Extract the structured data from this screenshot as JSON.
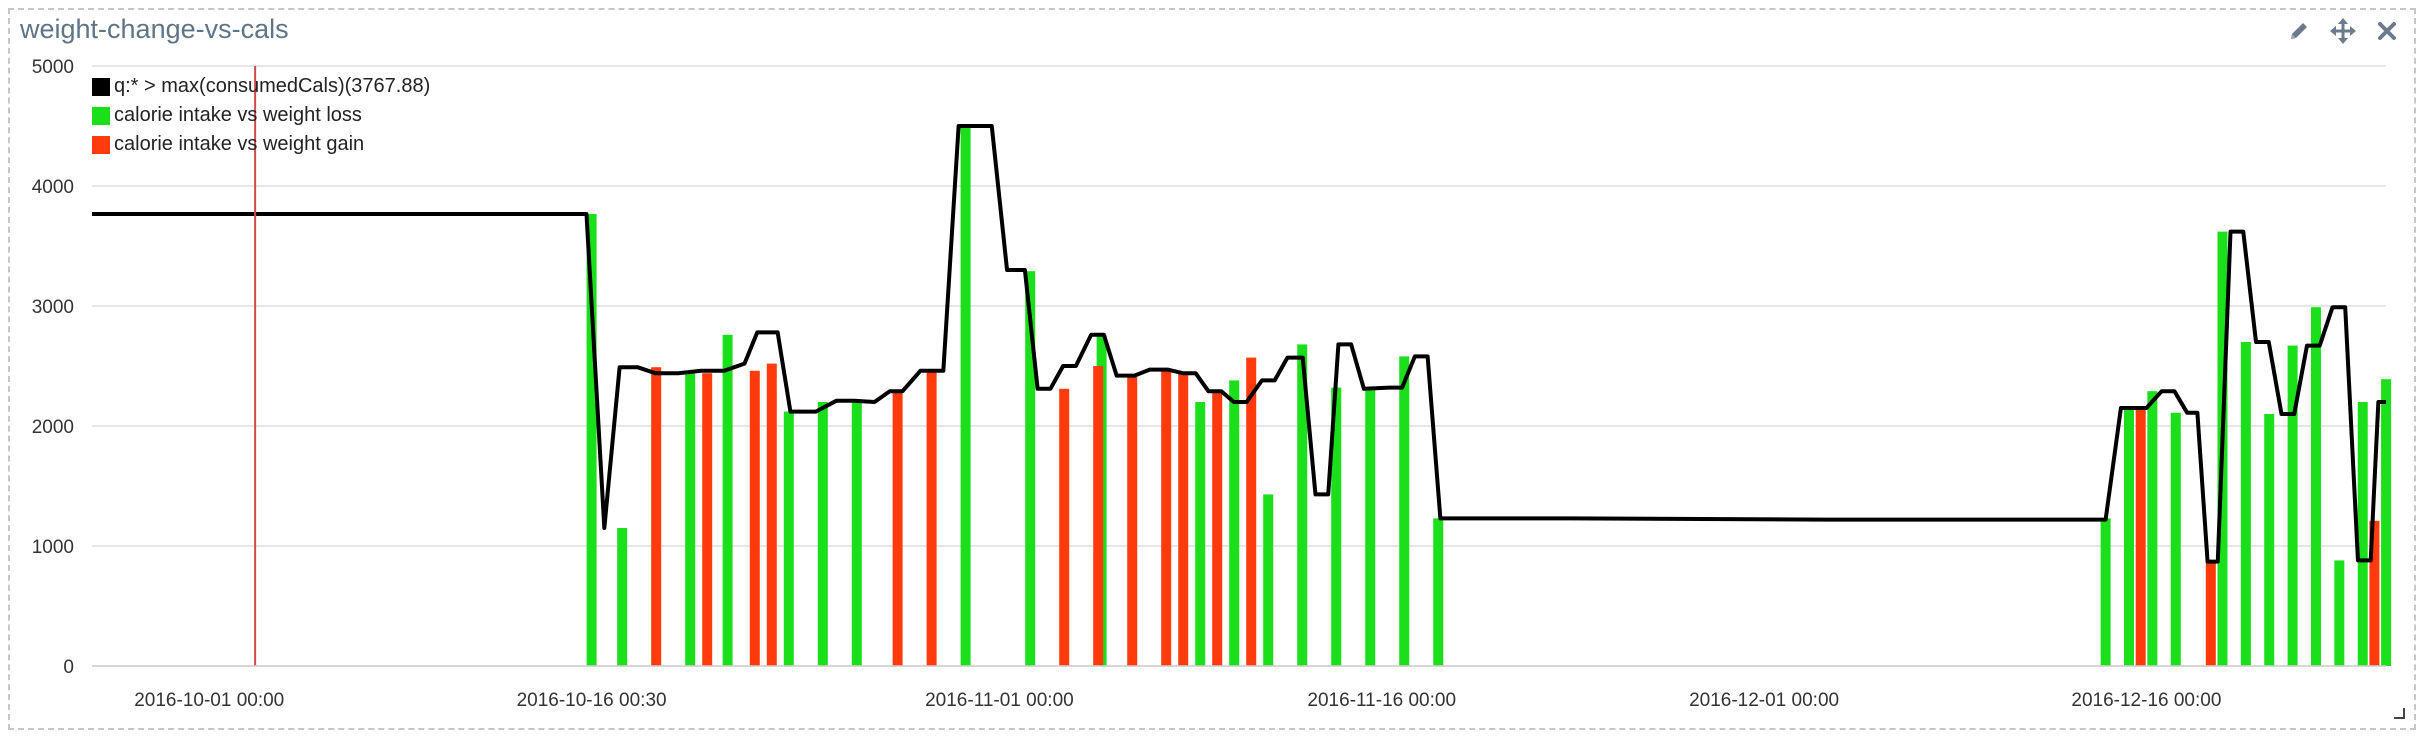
{
  "panel": {
    "title": "weight-change-vs-cals",
    "tools": {
      "edit_icon": "pencil-icon",
      "move_icon": "move-icon",
      "close_icon": "close-icon"
    }
  },
  "colors": {
    "line": "#000000",
    "loss": "#1adf1a",
    "gain": "#ff3a0d",
    "marker": "#d04a4a",
    "grid": "#dddddd"
  },
  "chart_data": {
    "type": "bar",
    "title": "",
    "ylim": [
      0,
      5000
    ],
    "yticks": [
      0,
      1000,
      2000,
      3000,
      4000,
      5000
    ],
    "xlim_days": [
      -4.6,
      85.4
    ],
    "xticks": [
      {
        "label": "2016-10-01 00:00",
        "day": 0
      },
      {
        "label": "2016-10-16 00:30",
        "day": 15
      },
      {
        "label": "2016-11-01 00:00",
        "day": 31
      },
      {
        "label": "2016-11-16 00:00",
        "day": 46
      },
      {
        "label": "2016-12-01 00:00",
        "day": 61
      },
      {
        "label": "2016-12-16 00:00",
        "day": 76
      }
    ],
    "marker_day": 1.8,
    "legend": [
      {
        "label": "q:* > max(consumedCals)(3767.88)",
        "color": "#000000"
      },
      {
        "label": "calorie intake vs weight loss",
        "color": "#1adf1a"
      },
      {
        "label": "calorie intake vs weight gain",
        "color": "#ff3a0d"
      }
    ],
    "series": [
      {
        "name": "q:* > max(consumedCals)(3767.88)",
        "type": "line",
        "points": [
          [
            -4.6,
            3767
          ],
          [
            14.8,
            3767
          ],
          [
            15.5,
            1150
          ],
          [
            16.1,
            2490
          ],
          [
            16.8,
            2490
          ],
          [
            17.5,
            2440
          ],
          [
            18.4,
            2440
          ],
          [
            19.3,
            2460
          ],
          [
            20.2,
            2460
          ],
          [
            21.0,
            2520
          ],
          [
            21.5,
            2780
          ],
          [
            22.3,
            2780
          ],
          [
            22.8,
            2120
          ],
          [
            23.8,
            2120
          ],
          [
            24.6,
            2210
          ],
          [
            25.3,
            2210
          ],
          [
            26.1,
            2200
          ],
          [
            26.7,
            2290
          ],
          [
            27.2,
            2290
          ],
          [
            27.9,
            2460
          ],
          [
            28.8,
            2460
          ],
          [
            29.4,
            4500
          ],
          [
            30.7,
            4500
          ],
          [
            31.3,
            3300
          ],
          [
            32.0,
            3300
          ],
          [
            32.5,
            2310
          ],
          [
            33.0,
            2310
          ],
          [
            33.5,
            2500
          ],
          [
            34.0,
            2500
          ],
          [
            34.6,
            2760
          ],
          [
            35.1,
            2760
          ],
          [
            35.6,
            2420
          ],
          [
            36.3,
            2420
          ],
          [
            36.9,
            2470
          ],
          [
            37.6,
            2470
          ],
          [
            38.2,
            2440
          ],
          [
            38.7,
            2440
          ],
          [
            39.2,
            2290
          ],
          [
            39.7,
            2290
          ],
          [
            40.2,
            2200
          ],
          [
            40.7,
            2200
          ],
          [
            41.3,
            2380
          ],
          [
            41.8,
            2380
          ],
          [
            42.3,
            2570
          ],
          [
            42.9,
            2570
          ],
          [
            43.4,
            1430
          ],
          [
            43.9,
            1430
          ],
          [
            44.3,
            2680
          ],
          [
            44.8,
            2680
          ],
          [
            45.3,
            2310
          ],
          [
            46.3,
            2320
          ],
          [
            46.8,
            2320
          ],
          [
            47.3,
            2580
          ],
          [
            47.8,
            2580
          ],
          [
            48.3,
            1230
          ],
          [
            53.4,
            1230
          ],
          [
            63.4,
            1220
          ],
          [
            74.4,
            1220
          ],
          [
            75.0,
            2150
          ],
          [
            76.0,
            2150
          ],
          [
            76.6,
            2290
          ],
          [
            77.1,
            2290
          ],
          [
            77.6,
            2110
          ],
          [
            78.0,
            2110
          ],
          [
            78.4,
            870
          ],
          [
            78.8,
            870
          ],
          [
            79.3,
            3620
          ],
          [
            79.8,
            3620
          ],
          [
            80.3,
            2700
          ],
          [
            80.8,
            2700
          ],
          [
            81.3,
            2100
          ],
          [
            81.8,
            2100
          ],
          [
            82.3,
            2670
          ],
          [
            82.8,
            2670
          ],
          [
            83.3,
            2990
          ],
          [
            83.8,
            2990
          ],
          [
            84.3,
            880
          ],
          [
            84.8,
            880
          ],
          [
            85.1,
            2200
          ],
          [
            85.4,
            2200
          ]
        ]
      },
      {
        "name": "calorie intake vs weight loss",
        "type": "bar",
        "bars": [
          [
            15.0,
            3767
          ],
          [
            15.9,
            1150
          ],
          [
            17.9,
            2460
          ],
          [
            19.0,
            2760
          ],
          [
            20.8,
            2120
          ],
          [
            21.8,
            2200
          ],
          [
            22.8,
            2200
          ],
          [
            26.0,
            4500
          ],
          [
            27.9,
            3290
          ],
          [
            30.0,
            2760
          ],
          [
            32.9,
            2200
          ],
          [
            33.9,
            2380
          ],
          [
            34.9,
            1430
          ],
          [
            35.9,
            2680
          ],
          [
            36.9,
            2320
          ],
          [
            37.9,
            2320
          ],
          [
            38.9,
            2580
          ],
          [
            39.9,
            1230
          ],
          [
            50.9,
            1230
          ],
          [
            51.9,
            2150
          ],
          [
            52.9,
            2290
          ],
          [
            53.9,
            2110
          ],
          [
            55.9,
            3620
          ],
          [
            56.9,
            2700
          ],
          [
            57.9,
            2100
          ],
          [
            58.9,
            2670
          ],
          [
            59.9,
            2990
          ],
          [
            60.9,
            880
          ],
          [
            61.9,
            2200
          ],
          [
            62.9,
            2390
          ]
        ]
      },
      {
        "name": "calorie intake vs weight gain",
        "type": "bar",
        "bars": [
          [
            16.9,
            2490
          ],
          [
            18.4,
            2440
          ],
          [
            19.8,
            2460
          ],
          [
            20.3,
            2520
          ],
          [
            24.0,
            2290
          ],
          [
            25.0,
            2460
          ],
          [
            28.9,
            2310
          ],
          [
            29.9,
            2500
          ],
          [
            30.9,
            2420
          ],
          [
            31.9,
            2470
          ],
          [
            32.4,
            2440
          ],
          [
            33.4,
            2290
          ],
          [
            34.4,
            2570
          ],
          [
            52.4,
            2150
          ],
          [
            55.4,
            870
          ],
          [
            62.4,
            1210
          ]
        ]
      }
    ]
  }
}
